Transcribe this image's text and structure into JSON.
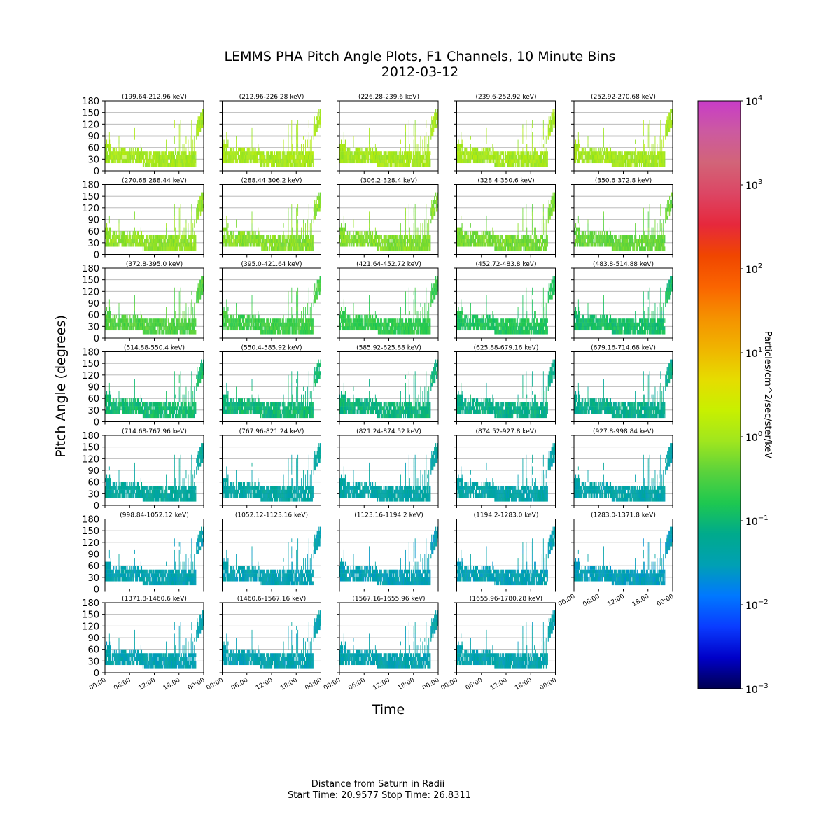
{
  "figure": {
    "title_line1": "LEMMS PHA Pitch Angle Plots, F1 Channels,  10 Minute Bins",
    "title_line2": "2012-03-12",
    "ylabel": "Pitch Angle (degrees)",
    "xlabel": "Time",
    "footer_line1": "Distance from Saturn in Radii",
    "footer_line2": "Start Time: 20.9577 Stop Time: 26.8311"
  },
  "chart_data": {
    "type": "heatmap",
    "layout": {
      "rows": 7,
      "cols": 5
    },
    "x_ticks": [
      "00:00",
      "06:00",
      "12:00",
      "18:00",
      "00:00"
    ],
    "y_ticks": [
      "0",
      "30",
      "60",
      "90",
      "120",
      "150",
      "180"
    ],
    "ylim": [
      0,
      180
    ],
    "grid": true,
    "panels": [
      {
        "title": "(199.64-212.96 keV)",
        "level": 1.0
      },
      {
        "title": "(212.96-226.28 keV)",
        "level": 1.0
      },
      {
        "title": "(226.28-239.6 keV)",
        "level": 1.0
      },
      {
        "title": "(239.6-252.92 keV)",
        "level": 0.98
      },
      {
        "title": "(252.92-270.68 keV)",
        "level": 0.97
      },
      {
        "title": "(270.68-288.44 keV)",
        "level": 0.72
      },
      {
        "title": "(288.44-306.2 keV)",
        "level": 0.65
      },
      {
        "title": "(306.2-328.4 keV)",
        "level": 0.6
      },
      {
        "title": "(328.4-350.6 keV)",
        "level": 0.52
      },
      {
        "title": "(350.6-372.8 keV)",
        "level": 0.42
      },
      {
        "title": "(372.8-395.0 keV)",
        "level": 0.32
      },
      {
        "title": "(395.0-421.64 keV)",
        "level": 0.25
      },
      {
        "title": "(421.64-452.72 keV)",
        "level": 0.2
      },
      {
        "title": "(452.72-483.8 keV)",
        "level": 0.15
      },
      {
        "title": "(483.8-514.88 keV)",
        "level": 0.12
      },
      {
        "title": "(514.88-550.4 keV)",
        "level": 0.11
      },
      {
        "title": "(550.4-585.92 keV)",
        "level": 0.1
      },
      {
        "title": "(585.92-625.88 keV)",
        "level": 0.09
      },
      {
        "title": "(625.88-679.16 keV)",
        "level": 0.075
      },
      {
        "title": "(679.16-714.68 keV)",
        "level": 0.07
      },
      {
        "title": "(714.68-767.96 keV)",
        "level": 0.05
      },
      {
        "title": "(767.96-821.24 keV)",
        "level": 0.045
      },
      {
        "title": "(821.24-874.52 keV)",
        "level": 0.042
      },
      {
        "title": "(874.52-927.8 keV)",
        "level": 0.04
      },
      {
        "title": "(927.8-998.84 keV)",
        "level": 0.04
      },
      {
        "title": "(998.84-1052.12 keV)",
        "level": 0.035
      },
      {
        "title": "(1052.12-1123.16 keV)",
        "level": 0.034
      },
      {
        "title": "(1123.16-1194.2 keV)",
        "level": 0.032
      },
      {
        "title": "(1194.2-1283.0 keV)",
        "level": 0.033
      },
      {
        "title": "(1283.0-1371.8 keV)",
        "level": 0.03
      },
      {
        "title": "(1371.8-1460.6 keV)",
        "level": 0.035
      },
      {
        "title": "(1460.6-1567.16 keV)",
        "level": 0.035
      },
      {
        "title": "(1567.16-1655.96 keV)",
        "level": 0.036
      },
      {
        "title": "(1655.96-1780.28 keV)",
        "level": 0.037
      }
    ],
    "colorbar": {
      "scale": "log",
      "range": [
        0.001,
        10000
      ],
      "ticks": [
        {
          "base": "10",
          "exp": "4"
        },
        {
          "base": "10",
          "exp": "3"
        },
        {
          "base": "10",
          "exp": "2"
        },
        {
          "base": "10",
          "exp": "1"
        },
        {
          "base": "10",
          "exp": "0"
        },
        {
          "base": "10",
          "exp": "−1"
        },
        {
          "base": "10",
          "exp": "−2"
        },
        {
          "base": "10",
          "exp": "−3"
        }
      ],
      "label": "Particles/cm^2/sec/ster/keV",
      "colors": [
        "#000050",
        "#0000c8",
        "#0a3cff",
        "#0078ff",
        "#00a0b4",
        "#00aa8c",
        "#1ec850",
        "#5ad23c",
        "#a0e61e",
        "#c8f000",
        "#e6dc00",
        "#f0b400",
        "#f59100",
        "#fa6400",
        "#f04600",
        "#e6283c",
        "#dc4664",
        "#d26478",
        "#cc5aa0",
        "#c83cc8"
      ]
    }
  }
}
